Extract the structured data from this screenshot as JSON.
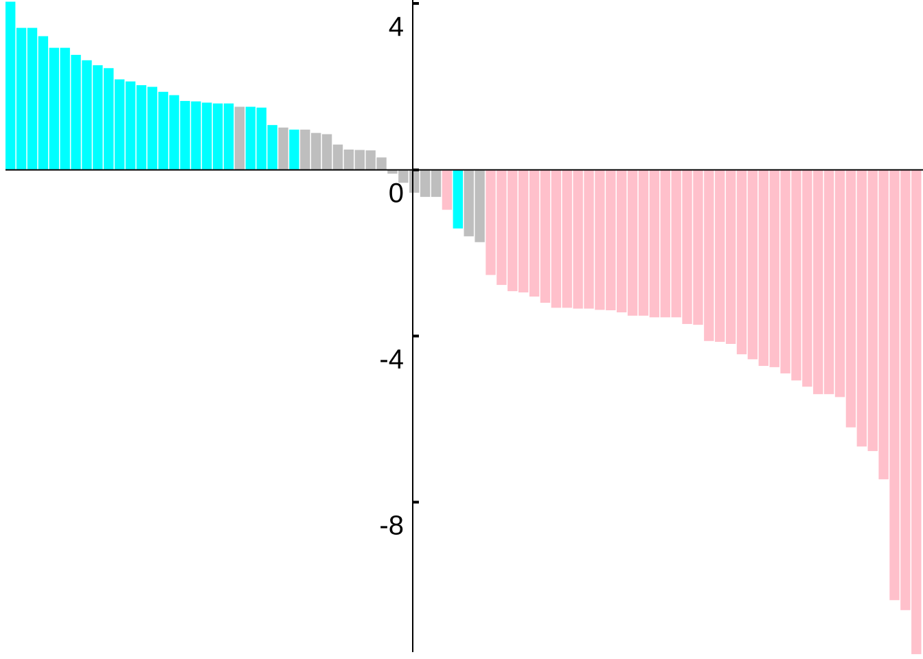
{
  "chart_data": {
    "type": "bar",
    "title": "",
    "xlabel": "",
    "ylabel": "",
    "ylim": [
      -11.66,
      4.0
    ],
    "yticks": [
      4,
      0,
      -4,
      -8
    ],
    "ytick_labels": [
      "4",
      "0",
      "-4",
      "-8"
    ],
    "grid": false,
    "legend": "none",
    "colors": {
      "cyan": "#00ffff",
      "gray": "#bebebe",
      "pink": "#ffc0cb",
      "axis": "#000000",
      "background": "#ffffff"
    },
    "bars": [
      {
        "value": 4.05,
        "color": "cyan"
      },
      {
        "value": 3.42,
        "color": "cyan"
      },
      {
        "value": 3.42,
        "color": "cyan"
      },
      {
        "value": 3.22,
        "color": "cyan"
      },
      {
        "value": 2.94,
        "color": "cyan"
      },
      {
        "value": 2.94,
        "color": "cyan"
      },
      {
        "value": 2.77,
        "color": "cyan"
      },
      {
        "value": 2.64,
        "color": "cyan"
      },
      {
        "value": 2.52,
        "color": "cyan"
      },
      {
        "value": 2.45,
        "color": "cyan"
      },
      {
        "value": 2.18,
        "color": "cyan"
      },
      {
        "value": 2.13,
        "color": "cyan"
      },
      {
        "value": 2.04,
        "color": "cyan"
      },
      {
        "value": 2.0,
        "color": "cyan"
      },
      {
        "value": 1.88,
        "color": "cyan"
      },
      {
        "value": 1.8,
        "color": "cyan"
      },
      {
        "value": 1.66,
        "color": "cyan"
      },
      {
        "value": 1.65,
        "color": "cyan"
      },
      {
        "value": 1.62,
        "color": "cyan"
      },
      {
        "value": 1.6,
        "color": "cyan"
      },
      {
        "value": 1.6,
        "color": "cyan"
      },
      {
        "value": 1.52,
        "color": "gray"
      },
      {
        "value": 1.52,
        "color": "cyan"
      },
      {
        "value": 1.5,
        "color": "cyan"
      },
      {
        "value": 1.08,
        "color": "cyan"
      },
      {
        "value": 1.02,
        "color": "gray"
      },
      {
        "value": 0.97,
        "color": "cyan"
      },
      {
        "value": 0.97,
        "color": "gray"
      },
      {
        "value": 0.89,
        "color": "gray"
      },
      {
        "value": 0.86,
        "color": "gray"
      },
      {
        "value": 0.61,
        "color": "gray"
      },
      {
        "value": 0.49,
        "color": "gray"
      },
      {
        "value": 0.48,
        "color": "gray"
      },
      {
        "value": 0.47,
        "color": "gray"
      },
      {
        "value": 0.3,
        "color": "gray"
      },
      {
        "value": -0.09,
        "color": "gray"
      },
      {
        "value": -0.31,
        "color": "gray"
      },
      {
        "value": -0.55,
        "color": "gray"
      },
      {
        "value": -0.65,
        "color": "gray"
      },
      {
        "value": -0.65,
        "color": "gray"
      },
      {
        "value": -0.96,
        "color": "pink"
      },
      {
        "value": -1.41,
        "color": "cyan"
      },
      {
        "value": -1.6,
        "color": "gray"
      },
      {
        "value": -1.74,
        "color": "gray"
      },
      {
        "value": -2.53,
        "color": "pink"
      },
      {
        "value": -2.77,
        "color": "pink"
      },
      {
        "value": -2.92,
        "color": "pink"
      },
      {
        "value": -2.95,
        "color": "pink"
      },
      {
        "value": -3.05,
        "color": "pink"
      },
      {
        "value": -3.2,
        "color": "pink"
      },
      {
        "value": -3.32,
        "color": "pink"
      },
      {
        "value": -3.32,
        "color": "pink"
      },
      {
        "value": -3.34,
        "color": "pink"
      },
      {
        "value": -3.34,
        "color": "pink"
      },
      {
        "value": -3.37,
        "color": "pink"
      },
      {
        "value": -3.38,
        "color": "pink"
      },
      {
        "value": -3.43,
        "color": "pink"
      },
      {
        "value": -3.51,
        "color": "pink"
      },
      {
        "value": -3.51,
        "color": "pink"
      },
      {
        "value": -3.55,
        "color": "pink"
      },
      {
        "value": -3.55,
        "color": "pink"
      },
      {
        "value": -3.55,
        "color": "pink"
      },
      {
        "value": -3.71,
        "color": "pink"
      },
      {
        "value": -3.73,
        "color": "pink"
      },
      {
        "value": -4.12,
        "color": "pink"
      },
      {
        "value": -4.14,
        "color": "pink"
      },
      {
        "value": -4.19,
        "color": "pink"
      },
      {
        "value": -4.44,
        "color": "pink"
      },
      {
        "value": -4.56,
        "color": "pink"
      },
      {
        "value": -4.72,
        "color": "pink"
      },
      {
        "value": -4.75,
        "color": "pink"
      },
      {
        "value": -4.9,
        "color": "pink"
      },
      {
        "value": -5.07,
        "color": "pink"
      },
      {
        "value": -5.22,
        "color": "pink"
      },
      {
        "value": -5.4,
        "color": "pink"
      },
      {
        "value": -5.4,
        "color": "pink"
      },
      {
        "value": -5.47,
        "color": "pink"
      },
      {
        "value": -6.2,
        "color": "pink"
      },
      {
        "value": -6.66,
        "color": "pink"
      },
      {
        "value": -6.77,
        "color": "pink"
      },
      {
        "value": -7.45,
        "color": "pink"
      },
      {
        "value": -10.36,
        "color": "pink"
      },
      {
        "value": -10.6,
        "color": "pink"
      },
      {
        "value": -11.66,
        "color": "pink"
      }
    ]
  }
}
